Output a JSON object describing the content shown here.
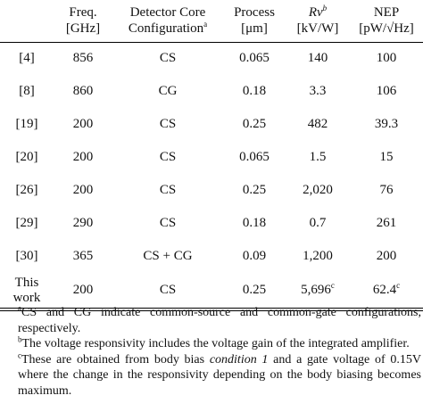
{
  "table": {
    "headers": [
      {
        "line1": "",
        "line2": ""
      },
      {
        "line1": "Freq.",
        "line2": "[GHz]"
      },
      {
        "line1": "Detector Core",
        "line2": "Configuration",
        "sup": "a"
      },
      {
        "line1": "Process",
        "line2": "[μm]"
      },
      {
        "line1": "Rv",
        "sup": "b",
        "line2": "[kV/W]"
      },
      {
        "line1": "NEP",
        "line2": "[pW/√Hz]"
      }
    ],
    "rows": [
      {
        "ref": "[4]",
        "freq": "856",
        "config": "CS",
        "process": "0.065",
        "rv": "140",
        "nep": "100"
      },
      {
        "ref": "[8]",
        "freq": "860",
        "config": "CG",
        "process": "0.18",
        "rv": "3.3",
        "nep": "106"
      },
      {
        "ref": "[19]",
        "freq": "200",
        "config": "CS",
        "process": "0.25",
        "rv": "482",
        "nep": "39.3"
      },
      {
        "ref": "[20]",
        "freq": "200",
        "config": "CS",
        "process": "0.065",
        "rv": "1.5",
        "nep": "15"
      },
      {
        "ref": "[26]",
        "freq": "200",
        "config": "CS",
        "process": "0.25",
        "rv": "2,020",
        "nep": "76"
      },
      {
        "ref": "[29]",
        "freq": "290",
        "config": "CS",
        "process": "0.18",
        "rv": "0.7",
        "nep": "261"
      },
      {
        "ref": "[30]",
        "freq": "365",
        "config": "CS + CG",
        "process": "0.09",
        "rv": "1,200",
        "nep": "200"
      }
    ],
    "this_work": {
      "ref_line1": "This",
      "ref_line2": "work",
      "freq": "200",
      "config": "CS",
      "process": "0.25",
      "rv": "5,696",
      "rv_sup": "c",
      "nep": "62.4",
      "nep_sup": "c"
    }
  },
  "footnotes": {
    "a": {
      "mark": "a",
      "text": "CS and CG indicate common-source and common-gate configurations, respectively."
    },
    "b": {
      "mark": "b",
      "text": "The voltage responsivity includes the voltage gain of the integrated amplifier."
    },
    "c": {
      "mark": "c",
      "pre": "These are obtained from body bias ",
      "italic": "condition 1",
      "post": " and a gate voltage of 0.15V where the change in the responsivity depending on the body biasing becomes maximum."
    }
  }
}
